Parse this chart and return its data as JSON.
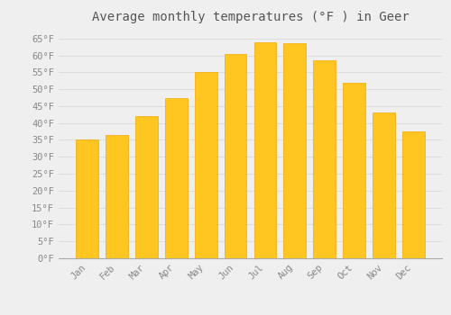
{
  "title": "Average monthly temperatures (°F ) in Geer",
  "months": [
    "Jan",
    "Feb",
    "Mar",
    "Apr",
    "May",
    "Jun",
    "Jul",
    "Aug",
    "Sep",
    "Oct",
    "Nov",
    "Dec"
  ],
  "values": [
    35,
    36.5,
    42,
    47.5,
    55,
    60.5,
    64,
    63.5,
    58.5,
    52,
    43,
    37.5
  ],
  "bar_color_face": "#FFC520",
  "bar_color_edge": "#F5A800",
  "bar_color_bottom": "#F5A800",
  "ylim": [
    0,
    68
  ],
  "yticks": [
    0,
    5,
    10,
    15,
    20,
    25,
    30,
    35,
    40,
    45,
    50,
    55,
    60,
    65
  ],
  "ytick_labels": [
    "0°F",
    "5°F",
    "10°F",
    "15°F",
    "20°F",
    "25°F",
    "30°F",
    "35°F",
    "40°F",
    "45°F",
    "50°F",
    "55°F",
    "60°F",
    "65°F"
  ],
  "bg_color": "#EFEFEF",
  "grid_color": "#DDDDDD",
  "title_fontsize": 10,
  "tick_fontsize": 7.5,
  "font_family": "monospace",
  "title_color": "#555555",
  "tick_color": "#888888",
  "bar_width": 0.75
}
